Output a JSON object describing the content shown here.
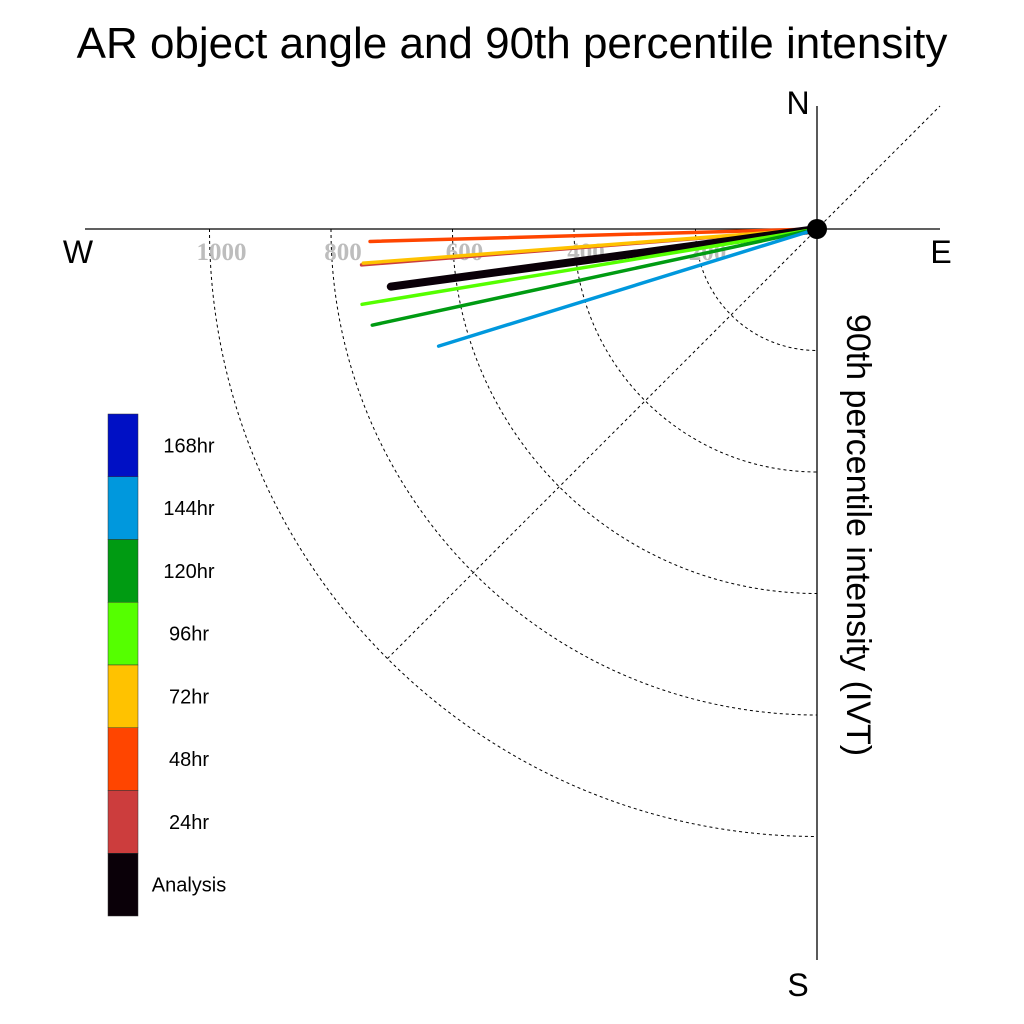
{
  "chart_data": {
    "type": "polar-vector",
    "title": "AR object angle and 90th percentile intensity",
    "ylabel": "90th percentile intensity (IVT)",
    "compass": {
      "north": "N",
      "south": "S",
      "east": "E",
      "west": "W"
    },
    "radial_ticks": [
      "200",
      "400",
      "600",
      "800",
      "1000"
    ],
    "radial_tick_values": [
      200,
      400,
      600,
      800,
      1000
    ],
    "radial_range": [
      0,
      1000
    ],
    "series": [
      {
        "name": "48hr",
        "color": "#ff4500",
        "angle_deg": 181.6,
        "intensity": 736
      },
      {
        "name": "24hr",
        "color": "#cc3d3d",
        "angle_deg": 184.5,
        "intensity": 752
      },
      {
        "name": "72hr",
        "color": "#ffc200",
        "angle_deg": 184.3,
        "intensity": 749
      },
      {
        "name": "Analysis",
        "color": "#0a0008",
        "angle_deg": 187.7,
        "intensity": 708
      },
      {
        "name": "96hr",
        "color": "#55ff00",
        "angle_deg": 189.4,
        "intensity": 759
      },
      {
        "name": "120hr",
        "color": "#009b12",
        "angle_deg": 192.2,
        "intensity": 749
      },
      {
        "name": "144hr",
        "color": "#0098dd",
        "angle_deg": 197.2,
        "intensity": 652
      }
    ],
    "legend": [
      {
        "label": "168hr",
        "color": "#0010c5"
      },
      {
        "label": "144hr",
        "color": "#0098dd"
      },
      {
        "label": "120hr",
        "color": "#009b12"
      },
      {
        "label": "96hr",
        "color": "#55ff00"
      },
      {
        "label": "72hr",
        "color": "#ffc200"
      },
      {
        "label": "48hr",
        "color": "#ff4500"
      },
      {
        "label": "24hr",
        "color": "#cc3d3d"
      },
      {
        "label": "Analysis",
        "color": "#0a0008"
      }
    ]
  }
}
